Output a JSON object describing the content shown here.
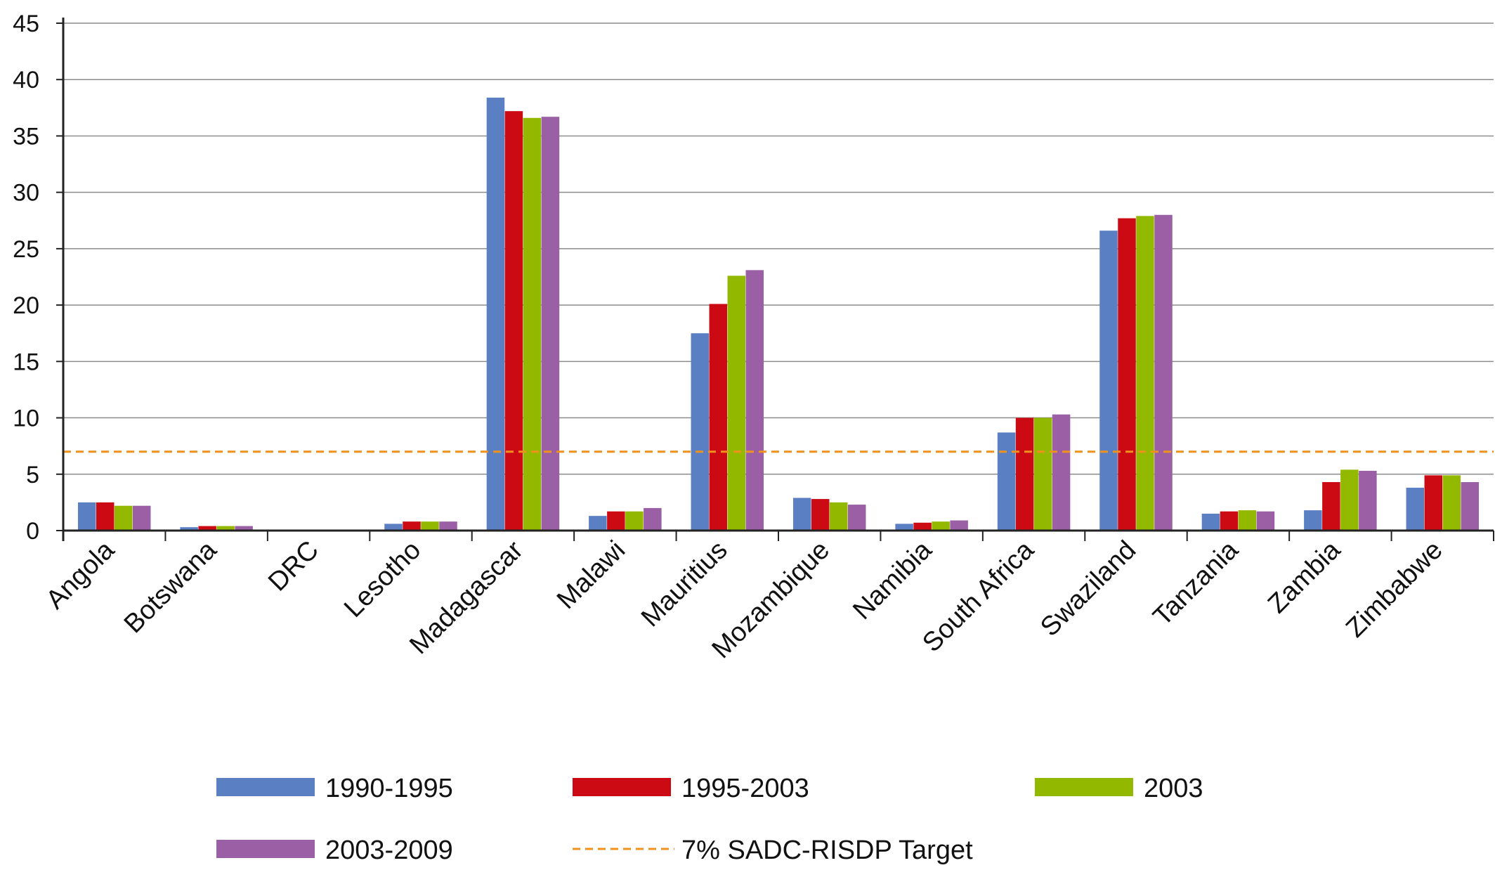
{
  "chart_data": {
    "type": "bar",
    "title": "",
    "xlabel": "",
    "ylabel": "",
    "ylim": [
      0,
      45
    ],
    "yticks": [
      0,
      5,
      10,
      15,
      20,
      25,
      30,
      35,
      40,
      45
    ],
    "grid": true,
    "categories": [
      "Angola",
      "Botswana",
      "DRC",
      "Lesotho",
      "Madagascar",
      "Malawi",
      "Mauritius",
      "Mozambique",
      "Namibia",
      "South Africa",
      "Swaziland",
      "Tanzania",
      "Zambia",
      "Zimbabwe"
    ],
    "series": [
      {
        "name": "1990-1995",
        "color": "#5b7fc3",
        "values": [
          2.5,
          0.3,
          0,
          0.6,
          38.4,
          1.3,
          17.5,
          2.9,
          0.6,
          8.7,
          26.6,
          1.5,
          1.8,
          3.8
        ]
      },
      {
        "name": "1995-2003",
        "color": "#cc0a14",
        "values": [
          2.5,
          0.4,
          0,
          0.8,
          37.2,
          1.7,
          20.1,
          2.8,
          0.7,
          10.0,
          27.7,
          1.7,
          4.3,
          4.9
        ]
      },
      {
        "name": "2003",
        "color": "#93b800",
        "values": [
          2.2,
          0.4,
          0,
          0.8,
          36.6,
          1.7,
          22.6,
          2.5,
          0.8,
          10.0,
          27.9,
          1.8,
          5.4,
          4.9
        ]
      },
      {
        "name": "2003-2009",
        "color": "#9b5fa5",
        "values": [
          2.2,
          0.4,
          0,
          0.8,
          36.7,
          2.0,
          23.1,
          2.3,
          0.9,
          10.3,
          28.0,
          1.7,
          5.3,
          4.3
        ]
      }
    ],
    "reference_line": {
      "name": "7% SADC-RISDP Target",
      "value": 7,
      "color": "#f0911c",
      "style": "dashed"
    },
    "legend_position": "bottom"
  }
}
